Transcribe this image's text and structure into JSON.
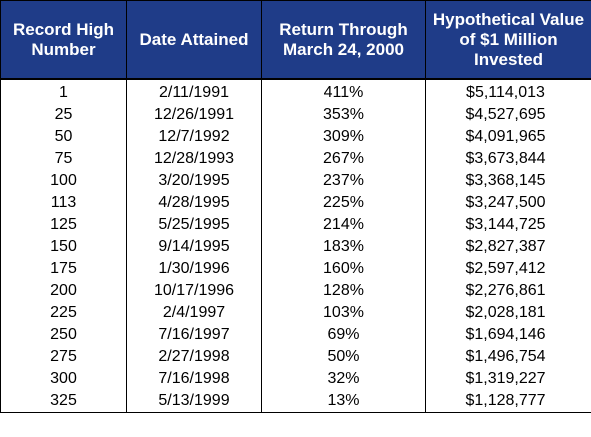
{
  "colors": {
    "header_bg": "#1f3c88",
    "header_text": "#ffffff",
    "border": "#000000"
  },
  "headers": [
    "Record High Number",
    "Date Attained",
    "Return Through March 24, 2000",
    "Hypothetical Value of $1 Million Invested"
  ],
  "rows": [
    [
      "1",
      "2/11/1991",
      "411%",
      "$5,114,013"
    ],
    [
      "25",
      "12/26/1991",
      "353%",
      "$4,527,695"
    ],
    [
      "50",
      "12/7/1992",
      "309%",
      "$4,091,965"
    ],
    [
      "75",
      "12/28/1993",
      "267%",
      "$3,673,844"
    ],
    [
      "100",
      "3/20/1995",
      "237%",
      "$3,368,145"
    ],
    [
      "113",
      "4/28/1995",
      "225%",
      "$3,247,500"
    ],
    [
      "125",
      "5/25/1995",
      "214%",
      "$3,144,725"
    ],
    [
      "150",
      "9/14/1995",
      "183%",
      "$2,827,387"
    ],
    [
      "175",
      "1/30/1996",
      "160%",
      "$2,597,412"
    ],
    [
      "200",
      "10/17/1996",
      "128%",
      "$2,276,861"
    ],
    [
      "225",
      "2/4/1997",
      "103%",
      "$2,028,181"
    ],
    [
      "250",
      "7/16/1997",
      "69%",
      "$1,694,146"
    ],
    [
      "275",
      "2/27/1998",
      "50%",
      "$1,496,754"
    ],
    [
      "300",
      "7/16/1998",
      "32%",
      "$1,319,227"
    ],
    [
      "325",
      "5/13/1999",
      "13%",
      "$1,128,777"
    ]
  ]
}
